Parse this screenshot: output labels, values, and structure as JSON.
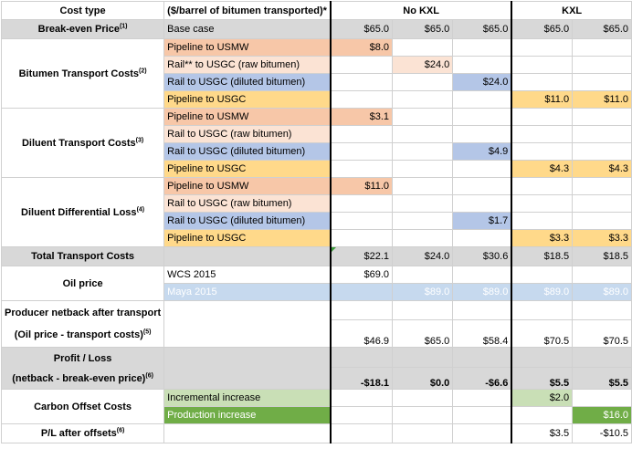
{
  "header": {
    "cost_type": "Cost type",
    "unit": "($/barrel of bitumen transported)*",
    "no_kxl": "No KXL",
    "kxl": "KXL"
  },
  "breakeven": {
    "label": "Break-even Price",
    "sup": "(1)",
    "route": "Base case",
    "values": [
      "$65.0",
      "$65.0",
      "$65.0",
      "$65.0",
      "$65.0"
    ]
  },
  "bitumen": {
    "label": "Bitumen Transport Costs",
    "sup": "(2)",
    "rows": [
      {
        "route": "Pipeline to USMW",
        "value": "$8.0"
      },
      {
        "route": "Rail** to USGC (raw bitumen)",
        "value": "$24.0"
      },
      {
        "route": "Rail to USGC (diluted bitumen)",
        "value": "$24.0"
      },
      {
        "route": "Pipeline to USGC",
        "values": [
          "$11.0",
          "$11.0"
        ]
      }
    ]
  },
  "diluent": {
    "label": "Diluent Transport Costs",
    "sup": "(3)",
    "rows": [
      {
        "route": "Pipeline to USMW",
        "value": "$3.1"
      },
      {
        "route": "Rail to USGC (raw bitumen)",
        "value": ""
      },
      {
        "route": "Rail to USGC (diluted bitumen)",
        "value": "$4.9"
      },
      {
        "route": "Pipeline to USGC",
        "values": [
          "$4.3",
          "$4.3"
        ]
      }
    ]
  },
  "differential": {
    "label": "Diluent Differential Loss",
    "sup": "(4)",
    "rows": [
      {
        "route": "Pipeline to USMW",
        "value": "$11.0"
      },
      {
        "route": "Rail to USGC (raw bitumen)",
        "value": ""
      },
      {
        "route": "Rail to USGC (diluted bitumen)",
        "value": "$1.7"
      },
      {
        "route": "Pipeline to USGC",
        "values": [
          "$3.3",
          "$3.3"
        ]
      }
    ]
  },
  "total": {
    "label": "Total Transport Costs",
    "values": [
      "$22.1",
      "$24.0",
      "$30.6",
      "$18.5",
      "$18.5"
    ]
  },
  "oil": {
    "label": "Oil price",
    "wcs_label": "WCS 2015",
    "wcs_value": "$69.0",
    "maya_label": "Maya 2015",
    "maya_values": [
      "$89.0",
      "$89.0",
      "$89.0",
      "$89.0"
    ]
  },
  "netback": {
    "label1": "Producer netback after transport",
    "label2": "(Oil price - transport costs)",
    "sup": "(5)",
    "values": [
      "$46.9",
      "$65.0",
      "$58.4",
      "$70.5",
      "$70.5"
    ]
  },
  "profit": {
    "label1": "Profit / Loss",
    "label2": "(netback - break-even price)",
    "sup": "(6)",
    "values": [
      "-$18.1",
      "$0.0",
      "-$6.6",
      "$5.5",
      "$5.5"
    ]
  },
  "carbon": {
    "label": "Carbon Offset Costs",
    "incr_label": "Incremental increase",
    "incr_value": "$2.0",
    "prod_label": "Production increase",
    "prod_value": "$16.0"
  },
  "pl": {
    "label": "P/L after offsets",
    "sup": "(6)",
    "values": [
      "$3.5",
      "-$10.5"
    ]
  }
}
